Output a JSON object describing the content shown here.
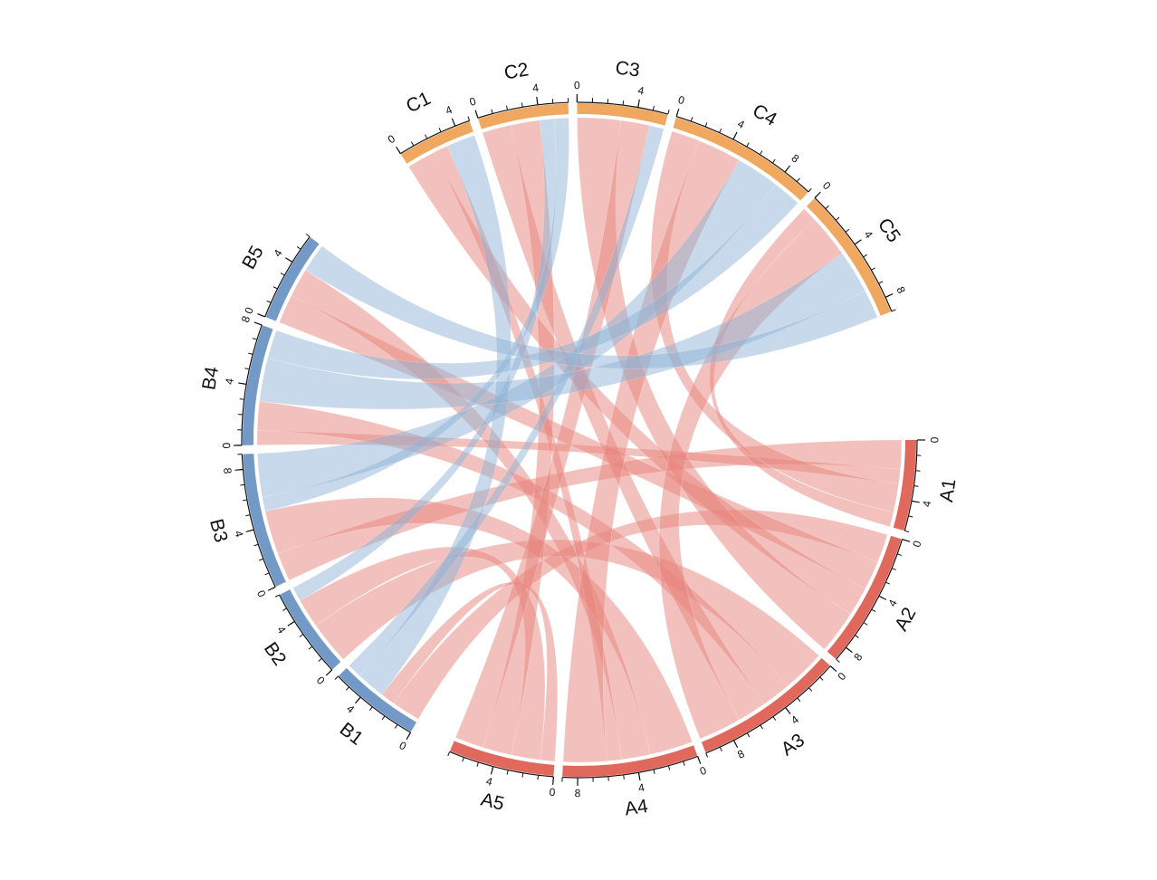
{
  "chart_data": {
    "type": "chord",
    "sectors": [
      {
        "name": "A1",
        "value": 6,
        "color": "#e0685c"
      },
      {
        "name": "A2",
        "value": 9,
        "color": "#e0685c"
      },
      {
        "name": "A3",
        "value": 10,
        "color": "#e0685c"
      },
      {
        "name": "A4",
        "value": 9,
        "color": "#e0685c"
      },
      {
        "name": "A5",
        "value": 7,
        "color": "#e0685c"
      },
      {
        "name": "B1",
        "value": 6,
        "color": "#7399c6"
      },
      {
        "name": "B2",
        "value": 6,
        "color": "#7399c6"
      },
      {
        "name": "B3",
        "value": 9,
        "color": "#7399c6"
      },
      {
        "name": "B4",
        "value": 8,
        "color": "#7399c6"
      },
      {
        "name": "B5",
        "value": 6,
        "color": "#7399c6"
      },
      {
        "name": "C1",
        "value": 5,
        "color": "#f0a860"
      },
      {
        "name": "C2",
        "value": 6,
        "color": "#f0a860"
      },
      {
        "name": "C3",
        "value": 6,
        "color": "#f0a860"
      },
      {
        "name": "C4",
        "value": 10,
        "color": "#f0a860"
      },
      {
        "name": "C5",
        "value": 9,
        "color": "#f0a860"
      }
    ],
    "links": [
      {
        "source": 0,
        "target": 7,
        "value": 2,
        "color": "#e8837b"
      },
      {
        "source": 0,
        "target": 8,
        "value": 1,
        "color": "#e8837b"
      },
      {
        "source": 1,
        "target": 5,
        "value": 2,
        "color": "#e8837b"
      },
      {
        "source": 1,
        "target": 9,
        "value": 2,
        "color": "#e8837b"
      },
      {
        "source": 2,
        "target": 6,
        "value": 3,
        "color": "#e8837b"
      },
      {
        "source": 2,
        "target": 8,
        "value": 2,
        "color": "#e8837b"
      },
      {
        "source": 3,
        "target": 7,
        "value": 3,
        "color": "#e8837b"
      },
      {
        "source": 3,
        "target": 9,
        "value": 2,
        "color": "#e8837b"
      },
      {
        "source": 4,
        "target": 5,
        "value": 1,
        "color": "#e8837b"
      },
      {
        "source": 4,
        "target": 6,
        "value": 2,
        "color": "#e8837b"
      },
      {
        "source": 0,
        "target": 13,
        "value": 2,
        "color": "#e8837b"
      },
      {
        "source": 0,
        "target": 14,
        "value": 1,
        "color": "#e8837b"
      },
      {
        "source": 1,
        "target": 10,
        "value": 2,
        "color": "#e8837b"
      },
      {
        "source": 1,
        "target": 12,
        "value": 3,
        "color": "#e8837b"
      },
      {
        "source": 2,
        "target": 11,
        "value": 2,
        "color": "#e8837b"
      },
      {
        "source": 2,
        "target": 14,
        "value": 3,
        "color": "#e8837b"
      },
      {
        "source": 3,
        "target": 10,
        "value": 1,
        "color": "#e8837b"
      },
      {
        "source": 3,
        "target": 13,
        "value": 3,
        "color": "#e8837b"
      },
      {
        "source": 4,
        "target": 11,
        "value": 2,
        "color": "#e8837b"
      },
      {
        "source": 4,
        "target": 12,
        "value": 2,
        "color": "#e8837b"
      },
      {
        "source": 5,
        "target": 10,
        "value": 2,
        "color": "#8fb3d6"
      },
      {
        "source": 5,
        "target": 12,
        "value": 1,
        "color": "#8fb3d6"
      },
      {
        "source": 6,
        "target": 11,
        "value": 1,
        "color": "#8fb3d6"
      },
      {
        "source": 7,
        "target": 11,
        "value": 1,
        "color": "#8fb3d6"
      },
      {
        "source": 7,
        "target": 13,
        "value": 3,
        "color": "#8fb3d6"
      },
      {
        "source": 8,
        "target": 14,
        "value": 3,
        "color": "#8fb3d6"
      },
      {
        "source": 8,
        "target": 13,
        "value": 2,
        "color": "#8fb3d6"
      },
      {
        "source": 9,
        "target": 14,
        "value": 2,
        "color": "#8fb3d6"
      }
    ],
    "tick_labels": [
      0,
      4,
      8
    ],
    "minor_tick_step": 1
  }
}
